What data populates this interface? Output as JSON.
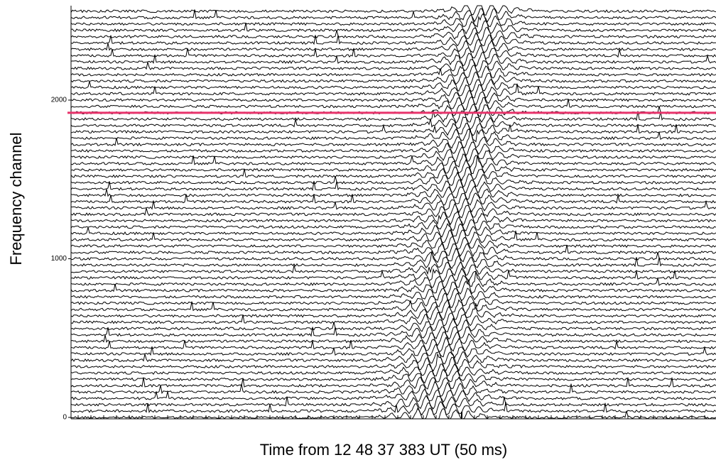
{
  "chart_data": {
    "type": "waterfall",
    "xlabel": "Time from 12 48 37 383 UT (50 ms)",
    "ylabel": "Frequency channel",
    "ylim": [
      0,
      2595
    ],
    "yticks": [
      0,
      1000,
      2000
    ],
    "trace_channels": [
      0,
      40,
      80,
      120,
      160,
      200,
      240,
      280,
      320,
      360,
      400,
      440,
      480,
      520,
      560,
      600,
      640,
      680,
      720,
      760,
      800,
      840,
      880,
      920,
      960,
      1000,
      1040,
      1080,
      1120,
      1160,
      1200,
      1240,
      1280,
      1320,
      1360,
      1400,
      1440,
      1480,
      1520,
      1560,
      1600,
      1640,
      1680,
      1720,
      1760,
      1800,
      1840,
      1880,
      1920,
      1960,
      2000,
      2040,
      2080,
      2120,
      2160,
      2200,
      2240,
      2280,
      2320,
      2360,
      2400,
      2440,
      2480,
      2520,
      2560
    ],
    "trace_color": "#000000",
    "marker_channel": 1920,
    "marker_color": "#e8336b"
  }
}
